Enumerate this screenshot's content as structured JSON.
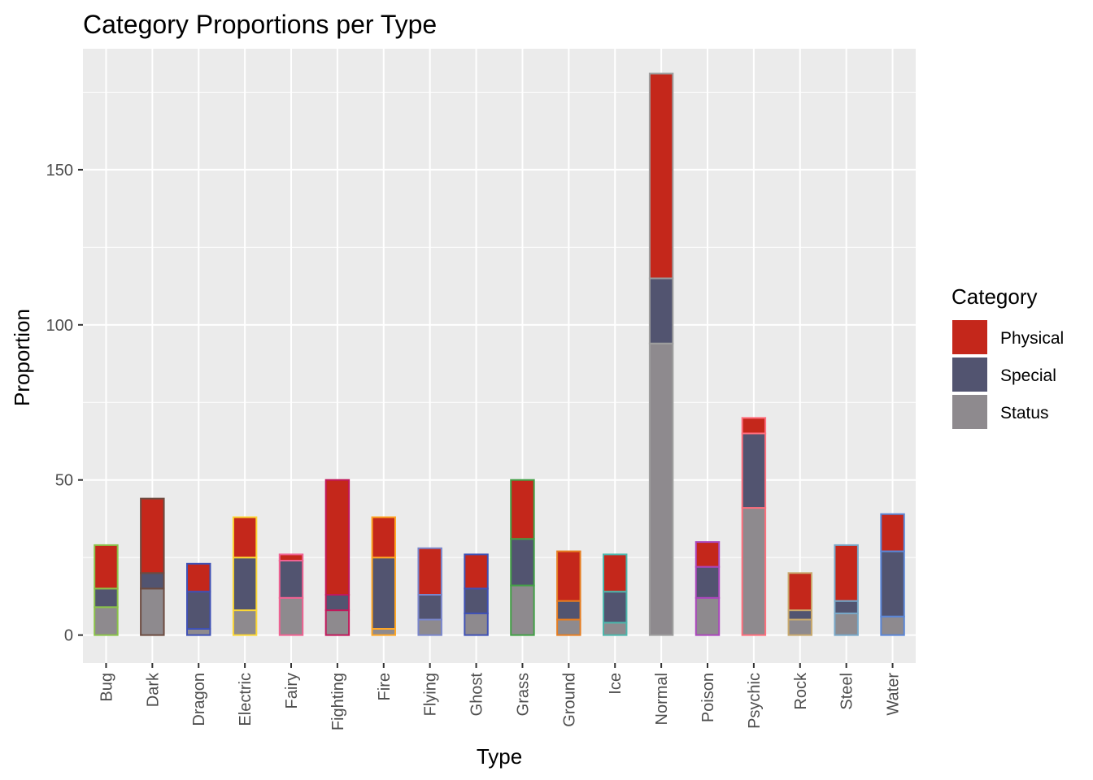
{
  "chart_data": {
    "type": "bar",
    "stacked": true,
    "title": "Category Proportions per Type",
    "xlabel": "Type",
    "ylabel": "Proportion",
    "ylim": [
      -9,
      189
    ],
    "yticks": [
      0,
      50,
      100,
      150
    ],
    "grid": true,
    "legend": {
      "title": "Category",
      "position": "right"
    },
    "categories": [
      "Bug",
      "Dark",
      "Dragon",
      "Electric",
      "Fairy",
      "Fighting",
      "Fire",
      "Flying",
      "Ghost",
      "Grass",
      "Ground",
      "Ice",
      "Normal",
      "Poison",
      "Psychic",
      "Rock",
      "Steel",
      "Water"
    ],
    "outline_colors": [
      "#8bc34a",
      "#6d4c41",
      "#3f51b5",
      "#fdd835",
      "#f06292",
      "#c2185b",
      "#ffa726",
      "#7986cb",
      "#3f51b5",
      "#43a047",
      "#e67e22",
      "#4db6ac",
      "#9e9e9e",
      "#ab47bc",
      "#ff6f7d",
      "#c8a96e",
      "#78a8c8",
      "#5b86d6"
    ],
    "series": [
      {
        "name": "Status",
        "color": "#8e8a8e",
        "values": [
          9,
          15,
          2,
          8,
          12,
          8,
          2,
          5,
          7,
          16,
          5,
          4,
          94,
          12,
          41,
          5,
          7,
          6
        ]
      },
      {
        "name": "Special",
        "color": "#525470",
        "values": [
          6,
          5,
          12,
          17,
          12,
          5,
          23,
          8,
          8,
          15,
          6,
          10,
          21,
          10,
          24,
          3,
          4,
          21
        ]
      },
      {
        "name": "Physical",
        "color": "#c4271b",
        "values": [
          14,
          24,
          9,
          13,
          2,
          37,
          13,
          15,
          11,
          19,
          16,
          12,
          66,
          8,
          5,
          12,
          18,
          12
        ]
      }
    ],
    "legend_order": [
      "Physical",
      "Special",
      "Status"
    ]
  }
}
